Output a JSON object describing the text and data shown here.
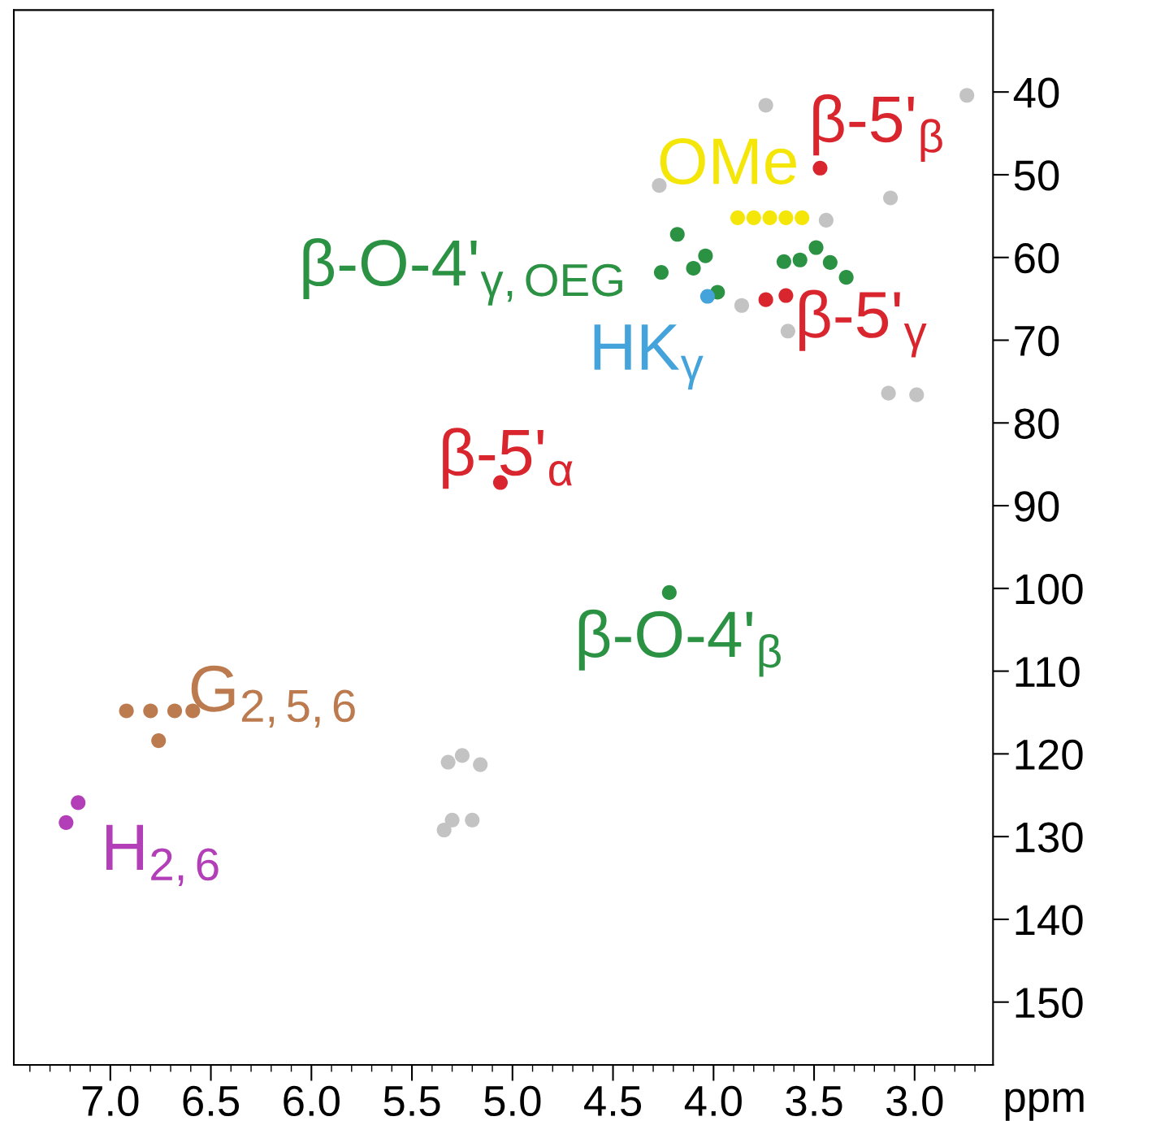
{
  "chart_data": {
    "type": "scatter",
    "xlabel": "ppm",
    "marker": "circle",
    "xlim": [
      7.48,
      2.61
    ],
    "ylim": [
      157.6,
      30.1
    ],
    "xticks": [
      {
        "value": 7.0,
        "label": "7.0"
      },
      {
        "value": 6.5,
        "label": "6.5"
      },
      {
        "value": 6.0,
        "label": "6.0"
      },
      {
        "value": 5.5,
        "label": "5.5"
      },
      {
        "value": 5.0,
        "label": "5.0"
      },
      {
        "value": 4.5,
        "label": "4.5"
      },
      {
        "value": 4.0,
        "label": "4.0"
      },
      {
        "value": 3.5,
        "label": "3.5"
      },
      {
        "value": 3.0,
        "label": "3.0"
      }
    ],
    "yticks": [
      40,
      50,
      60,
      70,
      80,
      90,
      100,
      110,
      120,
      130,
      140,
      150
    ],
    "grid": false,
    "series": [
      {
        "name": "β-5'$_{β}$",
        "color": "#d9262e",
        "x": [
          3.47
        ],
        "values": [
          49.2
        ]
      },
      {
        "name": "β-5'$_{γ}$",
        "color": "#d9262e",
        "x": [
          3.64,
          3.74
        ],
        "values": [
          64.6,
          65.1
        ]
      },
      {
        "name": "β-5'$_{α}$",
        "color": "#d9262e",
        "x": [
          5.06
        ],
        "values": [
          87.2
        ]
      },
      {
        "name": "OMe",
        "color": "#f5e60a",
        "x": [
          3.72,
          3.88,
          3.8,
          3.64,
          3.56
        ],
        "values": [
          55.2,
          55.2,
          55.2,
          55.2,
          55.2
        ]
      },
      {
        "name": "β-O-4'$_{γ,OEG}$",
        "color": "#2b9244",
        "x": [
          4.26,
          4.18,
          4.1,
          4.04,
          3.98,
          3.65,
          3.57,
          3.49,
          3.42,
          3.34
        ],
        "values": [
          61.8,
          57.2,
          61.3,
          59.8,
          64.2,
          60.5,
          60.3,
          58.8,
          60.6,
          62.4
        ]
      },
      {
        "name": "HK$_{γ}$",
        "color": "#44a3db",
        "x": [
          4.03
        ],
        "values": [
          64.7
        ]
      },
      {
        "name": "β-O-4'$_{β}$",
        "color": "#2b9244",
        "x": [
          4.22
        ],
        "values": [
          100.5
        ]
      },
      {
        "name": "G$_{2,5,6}$",
        "color": "#bc7a4f",
        "x": [
          6.68,
          6.59,
          6.8,
          6.92,
          6.76
        ],
        "values": [
          114.8,
          114.8,
          114.8,
          114.8,
          118.4
        ]
      },
      {
        "name": "H$_{2,6}$",
        "color": "#b23fb8",
        "x": [
          7.22,
          7.16
        ],
        "values": [
          128.3,
          125.9
        ]
      },
      {
        "color": "#c3c3c3",
        "x": [
          3.74,
          2.74,
          4.27,
          3.12,
          3.44,
          3.86,
          3.63,
          3.13,
          2.99,
          5.32,
          5.25,
          5.16,
          5.3,
          5.34,
          5.2
        ],
        "values": [
          41.6,
          40.4,
          51.3,
          52.8,
          55.5,
          65.8,
          68.9,
          76.4,
          76.6,
          121.0,
          120.2,
          121.3,
          128.0,
          129.2,
          128.0
        ]
      }
    ]
  }
}
